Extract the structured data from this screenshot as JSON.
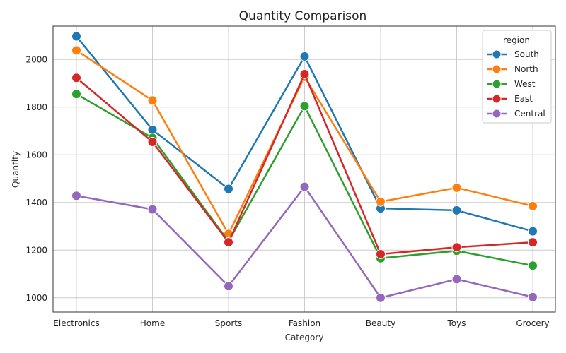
{
  "chart_data": {
    "type": "line",
    "title": "Quantity Comparison",
    "xlabel": "Category",
    "ylabel": "Quantity",
    "categories": [
      "Electronics",
      "Home",
      "Sports",
      "Fashion",
      "Beauty",
      "Toys",
      "Grocery"
    ],
    "ylim": [
      940,
      2140
    ],
    "yticks": [
      1000,
      1200,
      1400,
      1600,
      1800,
      2000
    ],
    "grid": true,
    "legend": {
      "title": "region",
      "placement": "top-right"
    },
    "series": [
      {
        "name": "South",
        "color": "#1f77b4",
        "values": [
          2097,
          1705,
          1457,
          2013,
          1375,
          1367,
          1279
        ]
      },
      {
        "name": "North",
        "color": "#ff7f0e",
        "values": [
          2038,
          1828,
          1268,
          1927,
          1403,
          1462,
          1385
        ]
      },
      {
        "name": "West",
        "color": "#2ca02c",
        "values": [
          1855,
          1671,
          1237,
          1804,
          1166,
          1197,
          1135
        ]
      },
      {
        "name": "East",
        "color": "#d62728",
        "values": [
          1923,
          1654,
          1233,
          1939,
          1183,
          1212,
          1233
        ]
      },
      {
        "name": "Central",
        "color": "#9467bd",
        "values": [
          1428,
          1371,
          1049,
          1466,
          1000,
          1078,
          1003
        ]
      }
    ]
  }
}
